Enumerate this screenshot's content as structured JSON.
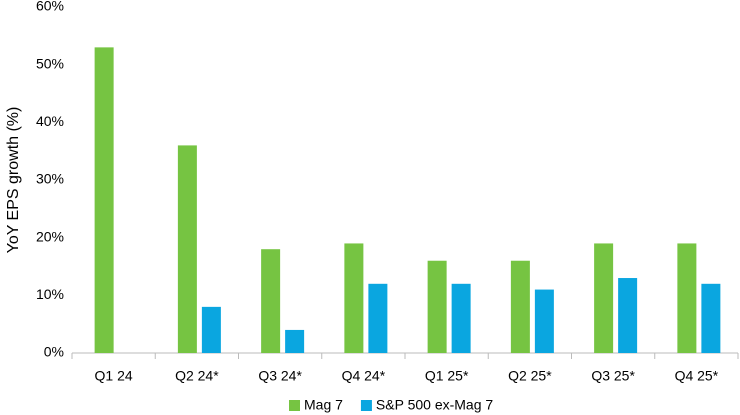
{
  "chart_data": {
    "type": "bar",
    "y_label": "YoY EPS growth (%)",
    "categories": [
      "Q1 24",
      "Q2 24*",
      "Q3 24*",
      "Q4 24*",
      "Q1 25*",
      "Q2 25*",
      "Q3 25*",
      "Q4 25*"
    ],
    "series": [
      {
        "name": "Mag 7",
        "color": "#76c442",
        "values": [
          53,
          36,
          18,
          19,
          16,
          16,
          19,
          19
        ]
      },
      {
        "name": "S&P 500 ex-Mag 7",
        "color": "#0aa6e0",
        "values": [
          null,
          8,
          4,
          12,
          12,
          11,
          13,
          12
        ]
      }
    ],
    "ylim": [
      0,
      60
    ],
    "yticks": [
      {
        "value": 0,
        "label": "0%"
      },
      {
        "value": 10,
        "label": "10%"
      },
      {
        "value": 20,
        "label": "20%"
      },
      {
        "value": 30,
        "label": "30%"
      },
      {
        "value": 40,
        "label": "40%"
      },
      {
        "value": 50,
        "label": "50%"
      },
      {
        "value": 60,
        "label": "60%"
      }
    ],
    "grid": false
  }
}
